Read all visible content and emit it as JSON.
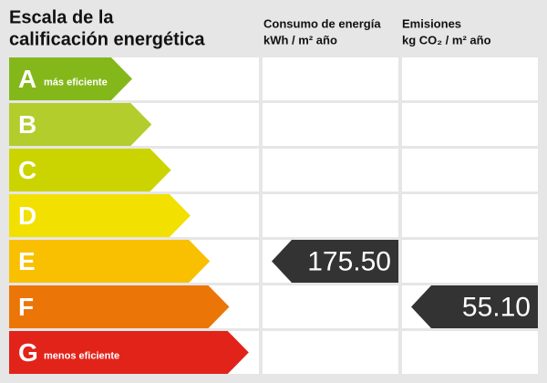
{
  "title_lines": [
    "Escala de la",
    "calificación energética"
  ],
  "columns": [
    {
      "title": "Consumo de energía",
      "unit": "kWh / m² año"
    },
    {
      "title": "Emisiones",
      "unit": "kg CO₂ / m² año"
    }
  ],
  "rows": [
    {
      "letter": "A",
      "note": "más eficiente",
      "color": "#84b81a"
    },
    {
      "letter": "B",
      "color": "#b2cd2c"
    },
    {
      "letter": "C",
      "color": "#cbd400"
    },
    {
      "letter": "D",
      "color": "#f1e000"
    },
    {
      "letter": "E",
      "color": "#f8c000"
    },
    {
      "letter": "F",
      "color": "#ec7508"
    },
    {
      "letter": "G",
      "note": "menos eficiente",
      "color": "#e2231a"
    }
  ],
  "ratings": [
    {
      "row": 4,
      "value": "175.50"
    },
    {
      "row": 5,
      "value": "55.10"
    }
  ]
}
